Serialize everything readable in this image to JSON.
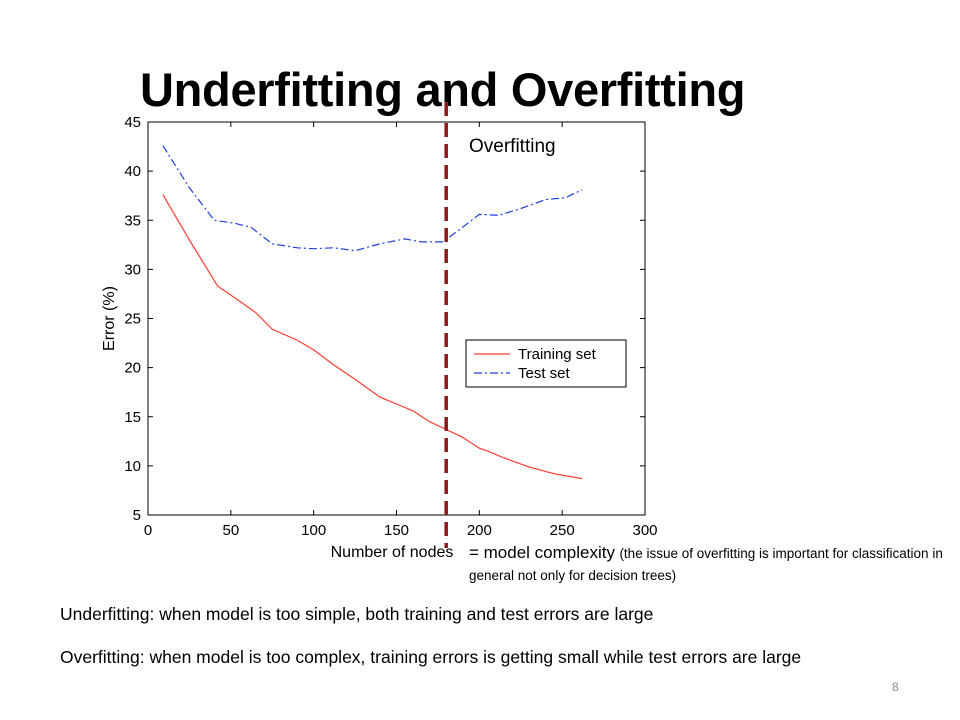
{
  "slide": {
    "title": "Underfitting and Overfitting",
    "annotation_overfitting": "Overfitting",
    "complexity_main": "= model complexity",
    "complexity_note": "(the issue of overfitting is important for classification in general not only for decision trees)",
    "bullet_underfitting": "Underfitting: when model is too simple, both training and test errors are large",
    "bullet_overfitting": "Overfitting: when model is too complex, training errors is getting small while test errors are large",
    "page_number": "8"
  },
  "chart_data": {
    "type": "line",
    "title": "",
    "xlabel": "Number of nodes",
    "ylabel": "Error (%)",
    "xlim": [
      0,
      300
    ],
    "ylim": [
      5,
      45
    ],
    "xticks": [
      0,
      50,
      100,
      150,
      200,
      250,
      300
    ],
    "yticks": [
      5,
      10,
      15,
      20,
      25,
      30,
      35,
      40,
      45
    ],
    "grid": false,
    "legend": "center-right",
    "vline_x": 180,
    "vline_color": "#8b1a1a",
    "series": [
      {
        "name": "Training set",
        "color": "#ff3b30",
        "style": "solid",
        "x": [
          9,
          25,
          42,
          55,
          65,
          75,
          90,
          100,
          112,
          125,
          140,
          150,
          160,
          170,
          180,
          190,
          200,
          205,
          215,
          230,
          245,
          262
        ],
        "y": [
          37.6,
          33.0,
          28.3,
          26.8,
          25.6,
          23.9,
          22.8,
          21.8,
          20.3,
          18.8,
          17.0,
          16.3,
          15.6,
          14.5,
          13.7,
          12.9,
          11.8,
          11.5,
          10.8,
          9.9,
          9.2,
          8.7
        ]
      },
      {
        "name": "Test set",
        "color": "#1f3fe0",
        "style": "dashdot",
        "x": [
          9,
          25,
          40,
          52,
          62,
          75,
          90,
          100,
          112,
          125,
          140,
          155,
          165,
          178,
          190,
          200,
          212,
          225,
          240,
          252,
          262
        ],
        "y": [
          42.6,
          38.3,
          35.0,
          34.7,
          34.3,
          32.6,
          32.2,
          32.1,
          32.2,
          31.9,
          32.6,
          33.1,
          32.8,
          32.8,
          34.3,
          35.6,
          35.5,
          36.2,
          37.1,
          37.3,
          38.1
        ]
      }
    ]
  }
}
